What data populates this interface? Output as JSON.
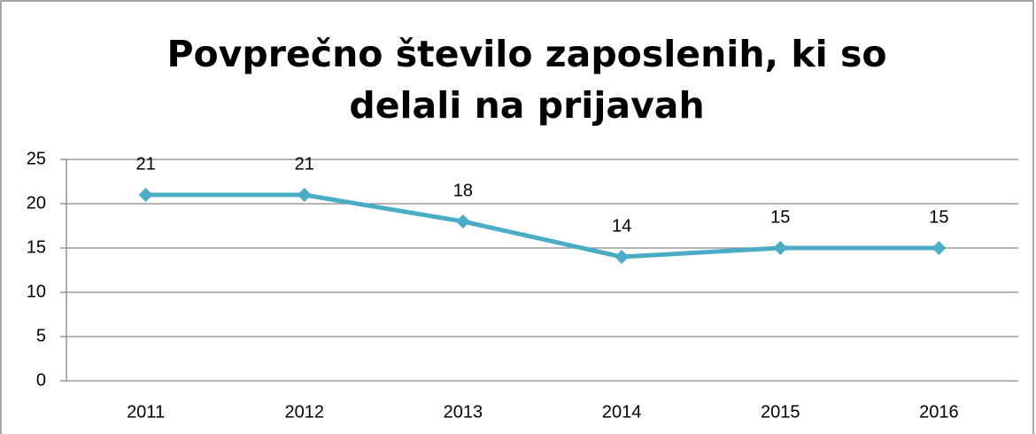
{
  "chart_data": {
    "type": "line",
    "title": "Povprečno število zaposlenih, ki so delali na prijavah",
    "categories": [
      "2011",
      "2012",
      "2013",
      "2014",
      "2015",
      "2016"
    ],
    "series": [
      {
        "name": "Povprečno število zaposlenih",
        "color": "#4bacc6",
        "values": [
          21,
          21,
          18,
          14,
          15,
          15
        ]
      }
    ],
    "ylim": [
      0,
      25
    ],
    "yticks": [
      0,
      5,
      10,
      15,
      20,
      25
    ],
    "grid": true,
    "data_labels": true
  }
}
